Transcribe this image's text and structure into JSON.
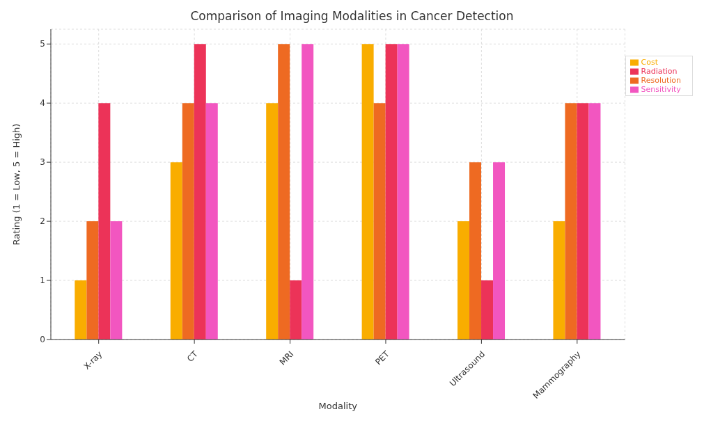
{
  "chart_data": {
    "type": "bar",
    "title": "Comparison of Imaging Modalities in Cancer Detection",
    "xlabel": "Modality",
    "ylabel": "Rating (1 = Low, 5 = High)",
    "categories": [
      "X-ray",
      "CT",
      "MRI",
      "PET",
      "Ultrasound",
      "Mammography"
    ],
    "series": [
      {
        "name": "Cost",
        "color": "#f9ad00",
        "values": [
          1,
          3,
          4,
          5,
          2,
          2
        ]
      },
      {
        "name": "Resolution",
        "color": "#ee6a22",
        "values": [
          2,
          4,
          5,
          4,
          3,
          4
        ]
      },
      {
        "name": "Radiation",
        "color": "#ec3358",
        "values": [
          4,
          5,
          1,
          5,
          1,
          4
        ]
      },
      {
        "name": "Sensitivity",
        "color": "#f256c0",
        "values": [
          2,
          4,
          5,
          5,
          3,
          4
        ]
      }
    ],
    "ylim": [
      0,
      5.25
    ],
    "yticks": [
      0,
      1,
      2,
      3,
      4,
      5
    ],
    "grid": true,
    "legend": "top right"
  }
}
